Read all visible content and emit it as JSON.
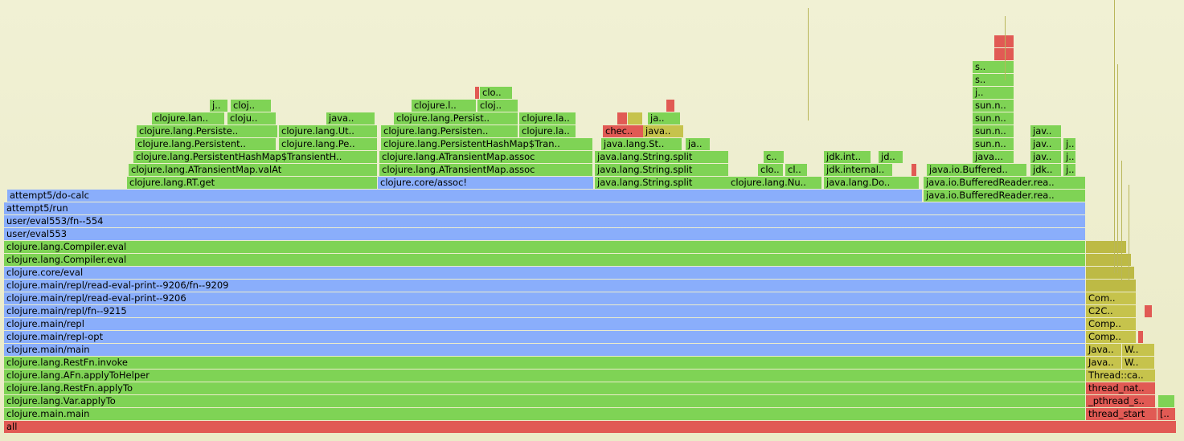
{
  "colors": {
    "java": "#7fd355",
    "clojure": "#8aaefb",
    "native": "#e15a54",
    "compiler": "#c6c34c",
    "background": "#eeeed0"
  },
  "frames": {
    "all": "all",
    "clojure_main_main": "clojure.main.main",
    "var_applyTo": "clojure.lang.Var.applyTo",
    "restfn_applyTo": "clojure.lang.RestFn.applyTo",
    "afn_applyToHelper": "clojure.lang.AFn.applyToHelper",
    "restfn_invoke": "clojure.lang.RestFn.invoke",
    "clojure_main_main2": "clojure.main/main",
    "repl_opt": "clojure.main/repl-opt",
    "repl": "clojure.main/repl",
    "repl_fn_9215": "clojure.main/repl/fn--9215",
    "read_eval_print": "clojure.main/repl/read-eval-print--9206",
    "read_eval_print_fn": "clojure.main/repl/read-eval-print--9206/fn--9209",
    "core_eval": "clojure.core/eval",
    "compiler_eval1": "clojure.lang.Compiler.eval",
    "compiler_eval2": "clojure.lang.Compiler.eval",
    "user_eval553": "user/eval553",
    "user_eval553_fn": "user/eval553/fn--554",
    "attempt5_run": "attempt5/run",
    "do_calc": "attempt5/do-calc",
    "rt_get": "clojure.lang.RT.get",
    "core_assoc": "clojure.core/assoc!",
    "string_split1": "java.lang.String.split",
    "nu": "clojure.lang.Nu..",
    "do": "java.lang.Do..",
    "buffered_rea1": "java.io.BufferedReader.rea..",
    "buffered_rea2": "java.io.BufferedReader.rea..",
    "atm_valat": "clojure.lang.ATransientMap.valAt",
    "atm_assoc1": "clojure.lang.ATransientMap.assoc",
    "string_split2": "java.lang.String.split",
    "clo1": "clo..",
    "cl1": "cl..",
    "jdk_internal": "jdk.internal..",
    "buffered_sm": "java.io.Buffered..",
    "jdk_s1": "jdk..",
    "j_s1": "j..",
    "phm_transient_h": "clojure.lang.PersistentHashMap$TransientH..",
    "atm_assoc2": "clojure.lang.ATransientMap.assoc",
    "string_split3": "java.lang.String.split",
    "c1": "c..",
    "jdk_int": "jdk.int..",
    "jd1": "jd..",
    "java_dots1": "java...",
    "jav_dots1": "jav..",
    "j_s2": "j..",
    "persistent_a": "clojure.lang.Persistent..",
    "persistent_pe": "clojure.lang.Pe..",
    "phm_tran": "clojure.lang.PersistentHashMap$Tran..",
    "string_st": "java.lang.St..",
    "ja1": "ja..",
    "sun_n1": "sun.n..",
    "jav_dots2": "jav..",
    "j_s3": "j..",
    "persiste": "clojure.lang.Persiste..",
    "ut": "clojure.lang.Ut..",
    "persisten": "clojure.lang.Persisten..",
    "la1": "clojure.la..",
    "chec": "chec..",
    "java_dots2": "java..",
    "sun_n2": "sun.n..",
    "jav_dots3": "jav..",
    "lan": "clojure.lan..",
    "cloju": "cloju..",
    "java_dots3": "java..",
    "persist": "clojure.lang.Persist..",
    "la2": "clojure.la..",
    "ja2": "ja..",
    "sun_n3": "sun.n..",
    "j_small1": "j..",
    "cloj1": "cloj..",
    "clojure_l": "clojure.l..",
    "cloj2": "cloj..",
    "sun_n4": "sun.n..",
    "clo2": "clo..",
    "j_small2": "j..",
    "s1": "s..",
    "s2": "s..",
    "thread_start": "thread_start",
    "thread_start_br": "[..",
    "pthread_s": "_pthread_s..",
    "thread_nat": "thread_nat..",
    "thread_ca": "Thread::ca..",
    "java_w1": "Java..",
    "w1": "W..",
    "java_w2": "Java..",
    "w2": "W..",
    "comp1": "Comp..",
    "comp2": "Comp..",
    "c2c": "C2C..",
    "com": "Com.."
  }
}
